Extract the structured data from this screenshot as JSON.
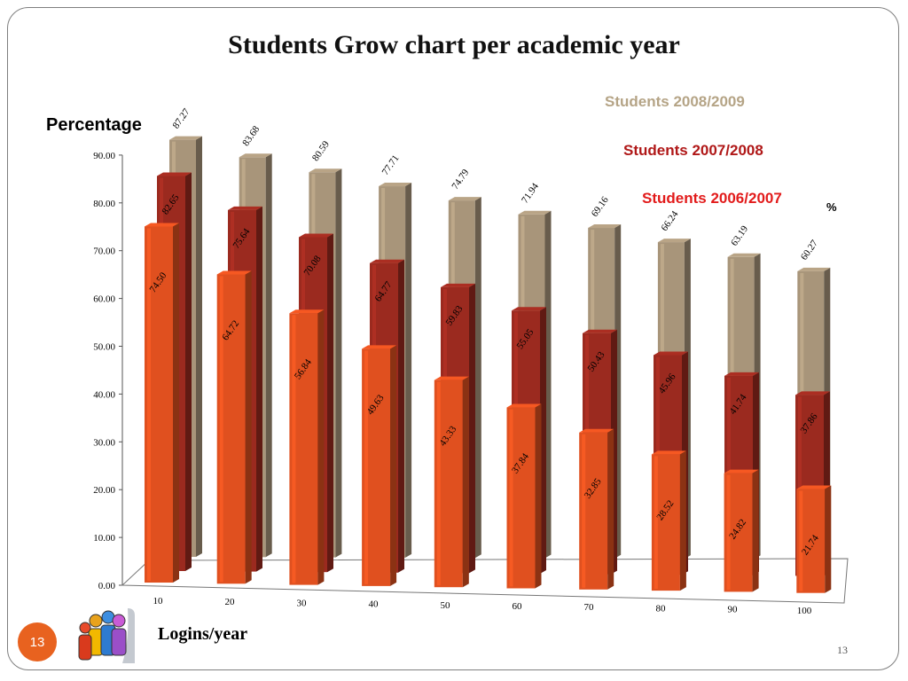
{
  "slide": {
    "title": "Students Grow chart per academic year",
    "badge_number": "13",
    "page_number": "13"
  },
  "chart_data": {
    "type": "bar",
    "title": "Students Grow chart per academic year",
    "ylabel": "Percentage",
    "xlabel": "Logins/year",
    "unit": "%",
    "categories": [
      "10",
      "20",
      "30",
      "40",
      "50",
      "60",
      "70",
      "80",
      "90",
      "100"
    ],
    "ylim": [
      0,
      90
    ],
    "yticks": [
      "0.00",
      "10.00",
      "20.00",
      "30.00",
      "40.00",
      "50.00",
      "60.00",
      "70.00",
      "80.00",
      "90.00"
    ],
    "grid": false,
    "legend_position": "top-right",
    "series": [
      {
        "name": "Students 2008/2009",
        "color": "#a8957a",
        "values": [
          87.27,
          83.68,
          80.59,
          77.71,
          74.79,
          71.94,
          69.16,
          66.24,
          63.19,
          60.27
        ],
        "labels": [
          "87.27",
          "83.68",
          "80.59",
          "77.71",
          "74.79",
          "71.94",
          "69.16",
          "66.24",
          "63.19",
          "60.27"
        ]
      },
      {
        "name": "Students 2007/2008",
        "color": "#9b2a1f",
        "values": [
          82.65,
          75.64,
          70.08,
          64.77,
          59.83,
          55.05,
          50.43,
          45.96,
          41.74,
          37.86
        ],
        "labels": [
          "82.65",
          "75.64",
          "70.08",
          "64.77",
          "59.83",
          "55.05",
          "50.43",
          "45.96",
          "41.74",
          "37.86"
        ]
      },
      {
        "name": "Students 2006/2007",
        "color": "#e0501f",
        "values": [
          74.5,
          64.72,
          56.84,
          49.63,
          43.33,
          37.84,
          32.85,
          28.52,
          24.82,
          21.74
        ],
        "labels": [
          "74.50",
          "64.72",
          "56.84",
          "49.63",
          "43.33",
          "37.84",
          "32.85",
          "28.52",
          "24.82",
          "21.74"
        ]
      }
    ],
    "legend_colors": [
      "#b5a486",
      "#b01818",
      "#e21b1b"
    ]
  }
}
